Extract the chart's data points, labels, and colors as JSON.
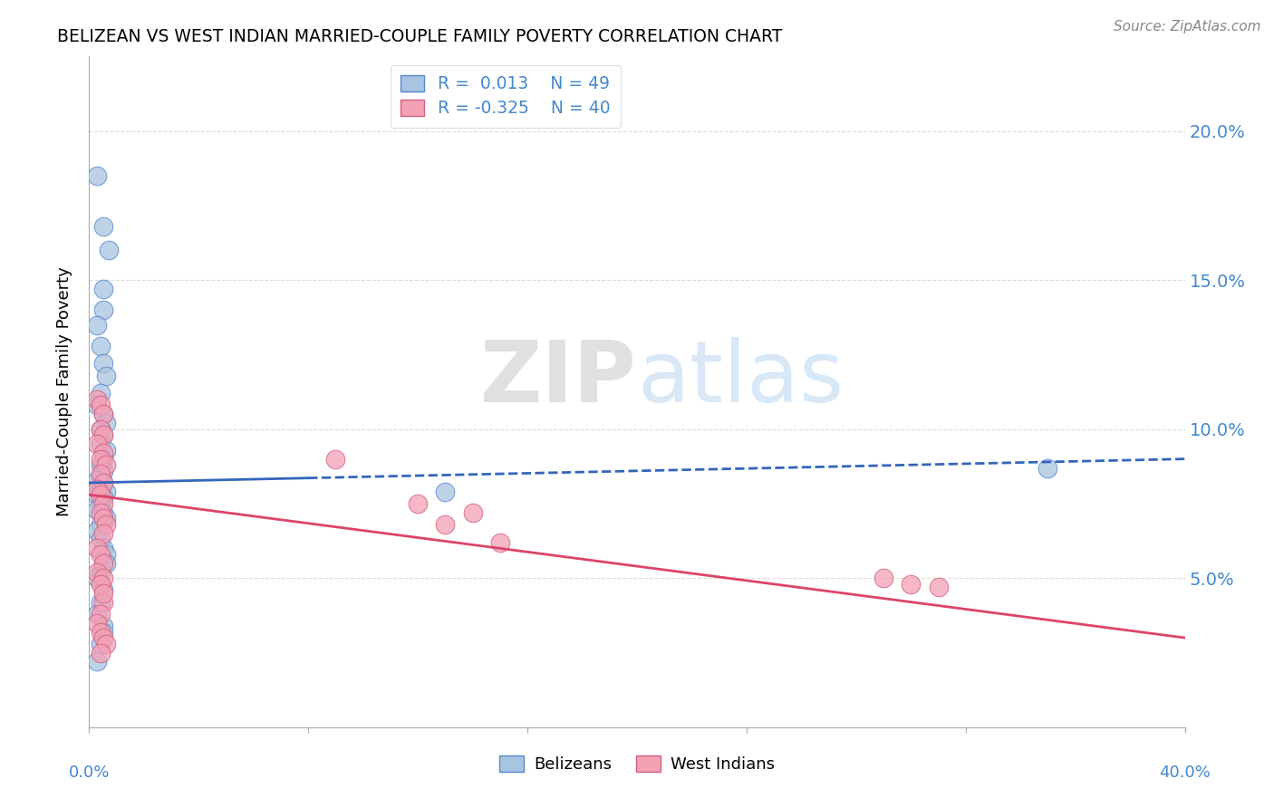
{
  "title": "BELIZEAN VS WEST INDIAN MARRIED-COUPLE FAMILY POVERTY CORRELATION CHART",
  "source": "Source: ZipAtlas.com",
  "ylabel": "Married-Couple Family Poverty",
  "y_ticks": [
    0.05,
    0.1,
    0.15,
    0.2
  ],
  "y_tick_labels": [
    "5.0%",
    "10.0%",
    "15.0%",
    "20.0%"
  ],
  "x_min": 0.0,
  "x_max": 0.4,
  "y_min": 0.0,
  "y_max": 0.225,
  "legend_r1": "R =  0.013",
  "legend_n1": "N = 49",
  "legend_r2": "R = -0.325",
  "legend_n2": "N = 40",
  "belizean_color": "#a8c4e0",
  "west_indian_color": "#f4a0b5",
  "belizean_edge": "#5588cc",
  "west_indian_edge": "#d06080",
  "line_belizean_color": "#3366bb",
  "line_west_indian_color": "#dd4466",
  "grid_color": "#cccccc",
  "background_color": "#ffffff",
  "belizean_x": [
    0.003,
    0.005,
    0.007,
    0.005,
    0.005,
    0.003,
    0.004,
    0.005,
    0.006,
    0.004,
    0.003,
    0.005,
    0.006,
    0.004,
    0.005,
    0.004,
    0.006,
    0.005,
    0.004,
    0.005,
    0.004,
    0.003,
    0.005,
    0.004,
    0.006,
    0.003,
    0.005,
    0.004,
    0.003,
    0.005,
    0.006,
    0.004,
    0.003,
    0.004,
    0.005,
    0.006,
    0.005,
    0.004,
    0.003,
    0.13,
    0.005,
    0.004,
    0.003,
    0.005,
    0.006,
    0.005,
    0.004,
    0.003,
    0.35
  ],
  "belizean_y": [
    0.185,
    0.168,
    0.16,
    0.147,
    0.14,
    0.135,
    0.128,
    0.122,
    0.118,
    0.112,
    0.108,
    0.105,
    0.102,
    0.1,
    0.098,
    0.095,
    0.093,
    0.09,
    0.088,
    0.086,
    0.084,
    0.083,
    0.082,
    0.08,
    0.079,
    0.078,
    0.077,
    0.075,
    0.073,
    0.072,
    0.07,
    0.068,
    0.066,
    0.063,
    0.06,
    0.058,
    0.055,
    0.052,
    0.05,
    0.079,
    0.046,
    0.042,
    0.038,
    0.034,
    0.055,
    0.032,
    0.028,
    0.022,
    0.087
  ],
  "west_indian_x": [
    0.003,
    0.004,
    0.005,
    0.004,
    0.005,
    0.003,
    0.005,
    0.004,
    0.006,
    0.004,
    0.005,
    0.003,
    0.004,
    0.005,
    0.004,
    0.005,
    0.006,
    0.005,
    0.09,
    0.12,
    0.14,
    0.13,
    0.15,
    0.003,
    0.004,
    0.005,
    0.3,
    0.31,
    0.29,
    0.003,
    0.005,
    0.004,
    0.005,
    0.004,
    0.003,
    0.004,
    0.005,
    0.006,
    0.004,
    0.005
  ],
  "west_indian_y": [
    0.11,
    0.108,
    0.105,
    0.1,
    0.098,
    0.095,
    0.092,
    0.09,
    0.088,
    0.085,
    0.082,
    0.08,
    0.078,
    0.075,
    0.072,
    0.07,
    0.068,
    0.065,
    0.09,
    0.075,
    0.072,
    0.068,
    0.062,
    0.06,
    0.058,
    0.055,
    0.048,
    0.047,
    0.05,
    0.052,
    0.05,
    0.048,
    0.042,
    0.038,
    0.035,
    0.032,
    0.03,
    0.028,
    0.025,
    0.045
  ],
  "line_b_x0": 0.0,
  "line_b_x1": 0.4,
  "line_b_y0": 0.082,
  "line_b_y1": 0.09,
  "line_w_x0": 0.0,
  "line_w_x1": 0.4,
  "line_w_y0": 0.078,
  "line_w_y1": 0.03
}
